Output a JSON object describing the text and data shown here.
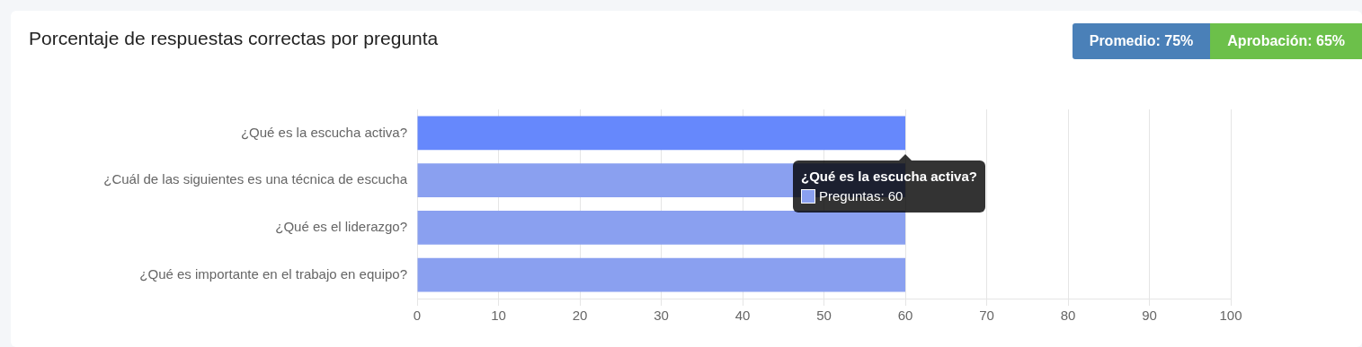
{
  "chart_data": {
    "type": "bar",
    "orientation": "horizontal",
    "title": "Porcentaje de respuestas correctas por pregunta",
    "categories": [
      "¿Qué es la escucha activa?",
      "¿Cuál de las siguientes es una técnica de escucha",
      "¿Qué es el liderazgo?",
      "¿Qué es importante en el trabajo en equipo?"
    ],
    "series": [
      {
        "color": "#8aa0f0",
        "colors": [
          "#6688fc",
          "#8aa0f0",
          "#8aa0f0",
          "#8aa0f0"
        ],
        "values": [
          60,
          60,
          60,
          60
        ]
      }
    ],
    "xlim": [
      0,
      100
    ],
    "xticks": [
      0,
      10,
      20,
      30,
      40,
      50,
      60,
      70,
      80,
      90,
      100
    ],
    "grid": "x",
    "legend": false,
    "annotations": [
      "Promedio: 75%",
      "Aprobación: 65%",
      {
        "text": "¿Qué es la escucha activa?",
        "x": 60,
        "y": "¿Qué es la escucha activa?"
      },
      "Preguntas: 60"
    ]
  }
}
